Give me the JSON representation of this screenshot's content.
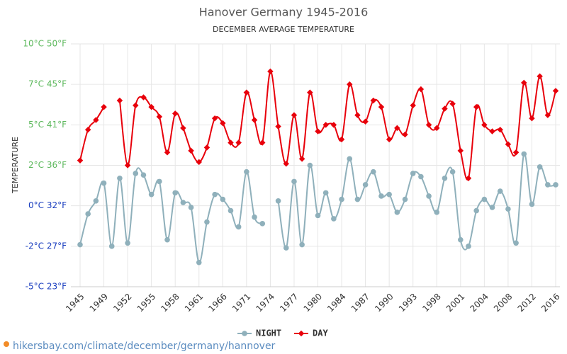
{
  "chart_data": {
    "type": "line",
    "title": "Hanover Germany 1945-2016",
    "subtitle": "DECEMBER AVERAGE TEMPERATURE",
    "y_label": "TEMPERATURE",
    "footer": "hikersbay.com/climate/december/germany/hannover",
    "categories": [
      "1945",
      null,
      null,
      "1949",
      null,
      null,
      "1952",
      null,
      null,
      "1955",
      null,
      null,
      "1958",
      null,
      null,
      "1961",
      null,
      null,
      "1966",
      null,
      null,
      "1971",
      null,
      null,
      "1974",
      null,
      null,
      "1977",
      null,
      null,
      "1980",
      null,
      null,
      "1984",
      null,
      null,
      "1987",
      null,
      null,
      "1990",
      null,
      null,
      "1993",
      null,
      null,
      "1998",
      null,
      null,
      "2001",
      null,
      null,
      "2004",
      null,
      null,
      "2008",
      null,
      null,
      "2012",
      null,
      null,
      "2016"
    ],
    "ylim": [
      -5,
      10
    ],
    "yticks": [
      {
        "value": -5,
        "label": "-5°C 23°F"
      },
      {
        "value": -2.5,
        "label": "-2°C 27°F"
      },
      {
        "value": 0,
        "label": "0°C 32°F"
      },
      {
        "value": 2.5,
        "label": "2°C 36°F"
      },
      {
        "value": 5,
        "label": "5°C 41°F"
      },
      {
        "value": 7.5,
        "label": "7°C 45°F"
      },
      {
        "value": 10,
        "label": "10°C 50°F"
      }
    ],
    "grid": true,
    "legend": "bottom",
    "series": [
      {
        "name": "NIGHT",
        "color": "#8fb0bb",
        "values": [
          -2.4,
          -0.5,
          0.3,
          1.4,
          -2.5,
          1.7,
          -2.3,
          2.0,
          1.9,
          0.7,
          1.5,
          -2.1,
          0.8,
          0.2,
          -0.1,
          -3.5,
          -1.0,
          0.7,
          0.4,
          -0.3,
          -1.3,
          2.1,
          -0.7,
          -1.1,
          null,
          0.3,
          -2.6,
          1.5,
          -2.4,
          2.5,
          -0.6,
          0.8,
          -0.8,
          0.4,
          2.9,
          0.4,
          1.3,
          2.1,
          0.6,
          0.7,
          -0.4,
          0.4,
          2.0,
          1.8,
          0.6,
          -0.4,
          1.7,
          2.1,
          -2.1,
          -2.5,
          -0.3,
          0.4,
          -0.1,
          0.9,
          -0.2,
          -2.3,
          3.2,
          0.1,
          2.4,
          1.3,
          1.3
        ]
      },
      {
        "name": "DAY",
        "color": "#e8000b",
        "values": [
          2.8,
          4.7,
          5.3,
          6.1,
          null,
          6.5,
          2.5,
          6.2,
          6.7,
          6.1,
          5.5,
          3.3,
          5.7,
          4.8,
          3.4,
          2.7,
          3.6,
          5.4,
          5.1,
          3.9,
          3.9,
          7.0,
          5.3,
          3.9,
          8.3,
          4.9,
          2.6,
          5.6,
          2.9,
          7.0,
          4.6,
          5.0,
          5.0,
          4.1,
          7.5,
          5.6,
          5.2,
          6.5,
          6.1,
          4.1,
          4.8,
          4.4,
          6.2,
          7.2,
          5.0,
          4.8,
          6.0,
          6.3,
          3.4,
          1.7,
          6.1,
          5.0,
          4.6,
          4.7,
          3.8,
          3.3,
          7.6,
          5.4,
          8.0,
          5.6,
          7.1
        ]
      }
    ]
  }
}
